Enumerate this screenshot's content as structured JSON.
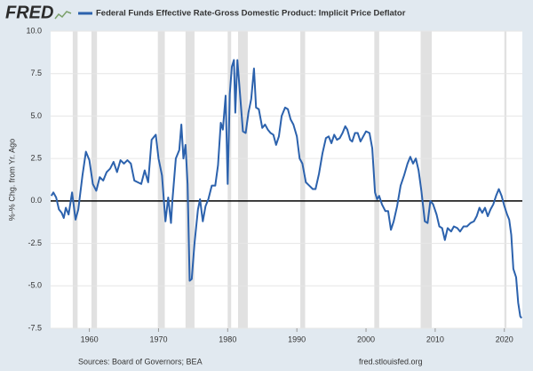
{
  "chart_data": {
    "type": "line",
    "logo": "FRED",
    "ylabel": "%-% Chg. from Yr. Ago",
    "source": "Sources: Board of Governors; BEA",
    "site": "fred.stlouisfed.org",
    "xlim": [
      1954.4,
      2022.6
    ],
    "ylim": [
      -7.5,
      10
    ],
    "xticks": [
      1960,
      1970,
      1980,
      1990,
      2000,
      2010,
      2020
    ],
    "yticks": [
      {
        "value": 10,
        "label": "10.0"
      },
      {
        "value": 7.5,
        "label": "7.5"
      },
      {
        "value": 5,
        "label": "5.0"
      },
      {
        "value": 2.5,
        "label": "2.5"
      },
      {
        "value": 0,
        "label": "0.0"
      },
      {
        "value": -2.5,
        "label": "-2.5"
      },
      {
        "value": -5,
        "label": "-5.0"
      },
      {
        "value": -7.5,
        "label": "-7.5"
      }
    ],
    "grid": true,
    "reference_line": 0,
    "recessions": [
      [
        1957.6,
        1958.3
      ],
      [
        1960.3,
        1961.1
      ],
      [
        1969.9,
        1970.9
      ],
      [
        1973.9,
        1975.2
      ],
      [
        1980.0,
        1980.5
      ],
      [
        1981.5,
        1982.9
      ],
      [
        1990.5,
        1991.2
      ],
      [
        2001.2,
        2001.9
      ],
      [
        2007.9,
        2009.5
      ],
      [
        2020.0,
        2020.3
      ]
    ],
    "x": [
      1954.5,
      1954.8,
      1955.2,
      1955.6,
      1956,
      1956.3,
      1956.6,
      1957,
      1957.5,
      1958,
      1958.4,
      1959,
      1959.5,
      1960,
      1960.5,
      1961,
      1961.5,
      1962,
      1962.5,
      1963,
      1963.5,
      1964,
      1964.5,
      1965,
      1965.5,
      1966,
      1966.5,
      1967,
      1967.5,
      1968,
      1968.5,
      1969,
      1969.6,
      1970,
      1970.5,
      1971,
      1971.4,
      1971.8,
      1972,
      1972.5,
      1973,
      1973.3,
      1973.6,
      1973.9,
      1974.2,
      1974.5,
      1974.8,
      1975.2,
      1975.7,
      1976,
      1976.4,
      1976.8,
      1977.2,
      1977.7,
      1978.2,
      1978.6,
      1979,
      1979.3,
      1979.7,
      1980,
      1980.3,
      1980.6,
      1980.9,
      1981.1,
      1981.4,
      1981.8,
      1982.2,
      1982.6,
      1983,
      1983.4,
      1983.8,
      1984.1,
      1984.5,
      1985,
      1985.4,
      1985.8,
      1986.2,
      1986.6,
      1987,
      1987.4,
      1987.8,
      1988.3,
      1988.7,
      1989.1,
      1989.5,
      1990,
      1990.4,
      1990.8,
      1991.3,
      1991.8,
      1992.3,
      1992.7,
      1993.2,
      1993.7,
      1994.2,
      1994.6,
      1995,
      1995.4,
      1995.8,
      1996.2,
      1996.6,
      1997,
      1997.3,
      1997.7,
      1998,
      1998.4,
      1998.8,
      1999.2,
      1999.6,
      2000,
      2000.5,
      2000.9,
      2001.3,
      2001.6,
      2001.9,
      2002.3,
      2002.8,
      2003.2,
      2003.6,
      2004,
      2004.5,
      2005,
      2005.5,
      2006,
      2006.4,
      2006.8,
      2007.2,
      2007.6,
      2008,
      2008.5,
      2008.9,
      2009.3,
      2009.7,
      2010.2,
      2010.6,
      2011,
      2011.4,
      2011.8,
      2012.3,
      2012.7,
      2013.2,
      2013.6,
      2014.1,
      2014.6,
      2015.1,
      2015.6,
      2016,
      2016.4,
      2016.8,
      2017.2,
      2017.6,
      2018,
      2018.4,
      2018.8,
      2019.2,
      2019.6,
      2020,
      2020.4,
      2020.7,
      2021,
      2021.3,
      2021.7,
      2022,
      2022.3,
      2022.5
    ],
    "series": [
      {
        "name": "Federal Funds Effective Rate-Gross Domestic Product: Implicit Price Deflator",
        "color": "#2c62ad",
        "values": [
          0.3,
          0.5,
          0.2,
          -0.5,
          -0.7,
          -1.0,
          -0.4,
          -0.8,
          0.5,
          -1.1,
          -0.5,
          1.5,
          2.9,
          2.4,
          1.0,
          0.6,
          1.4,
          1.2,
          1.7,
          1.9,
          2.3,
          1.7,
          2.4,
          2.2,
          2.4,
          2.2,
          1.2,
          1.1,
          1.0,
          1.8,
          1.1,
          3.6,
          3.9,
          2.5,
          1.5,
          -1.2,
          0.2,
          -1.3,
          0.0,
          2.5,
          3.0,
          4.5,
          2.5,
          3.3,
          1.0,
          -4.7,
          -4.6,
          -2.5,
          -0.5,
          0.1,
          -1.2,
          -0.3,
          0.1,
          0.9,
          0.9,
          2.1,
          4.6,
          4.2,
          6.2,
          1.0,
          6.3,
          7.9,
          8.3,
          5.2,
          8.3,
          6.2,
          4.1,
          4.0,
          5.2,
          6.0,
          7.8,
          5.5,
          5.4,
          4.3,
          4.5,
          4.2,
          4.0,
          3.9,
          3.3,
          3.8,
          5.0,
          5.5,
          5.4,
          4.8,
          4.5,
          3.8,
          2.5,
          2.2,
          1.1,
          0.9,
          0.7,
          0.7,
          1.6,
          2.8,
          3.7,
          3.8,
          3.4,
          3.9,
          3.6,
          3.7,
          4.0,
          4.4,
          4.2,
          3.6,
          3.5,
          4.0,
          4.0,
          3.5,
          3.8,
          4.1,
          4.0,
          3.1,
          0.5,
          0.1,
          0.3,
          -0.2,
          -0.6,
          -0.6,
          -1.7,
          -1.2,
          -0.3,
          0.9,
          1.5,
          2.2,
          2.6,
          2.2,
          2.5,
          1.8,
          0.6,
          -1.2,
          -1.3,
          0.0,
          -0.2,
          -0.8,
          -1.5,
          -1.6,
          -2.3,
          -1.6,
          -1.8,
          -1.5,
          -1.6,
          -1.8,
          -1.5,
          -1.5,
          -1.3,
          -1.2,
          -0.9,
          -0.4,
          -0.7,
          -0.4,
          -0.9,
          -0.5,
          -0.2,
          0.3,
          0.7,
          0.3,
          -0.3,
          -0.8,
          -1.1,
          -2.0,
          -4.0,
          -4.5,
          -6.0,
          -6.8,
          -6.9
        ]
      }
    ]
  }
}
